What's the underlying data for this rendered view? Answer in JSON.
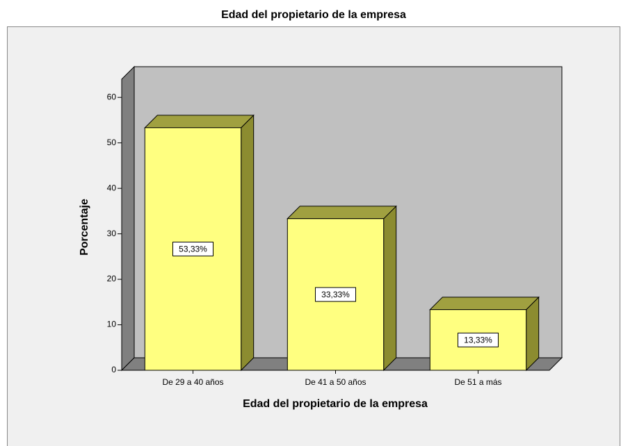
{
  "chart_data": {
    "type": "bar3d",
    "title": "Edad del propietario de la empresa",
    "x_label": "Edad del propietario de la empresa",
    "y_label": "Porcentaje",
    "categories": [
      "De 29 a 40 años",
      "De 41 a 50 años",
      "De 51 a más"
    ],
    "values": [
      53.33,
      33.33,
      13.33
    ],
    "value_labels": [
      "53,33%",
      "33,33%",
      "13,33%"
    ],
    "color": "#ffff80",
    "ylim": [
      0,
      64
    ],
    "yticks": [
      0,
      10,
      20,
      30,
      40,
      50,
      60
    ]
  }
}
